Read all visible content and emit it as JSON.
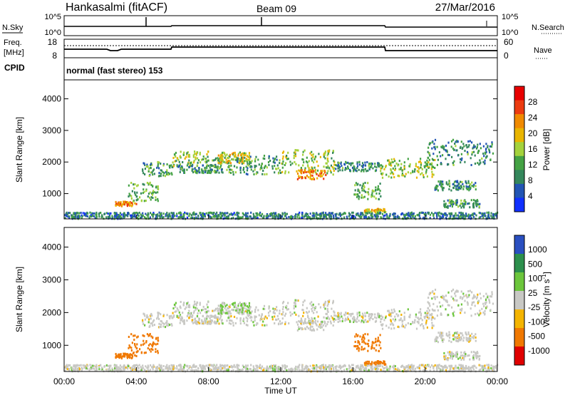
{
  "header": {
    "station": "Hankasalmi (fitACF)",
    "beam": "Beam 09",
    "date": "27/Mar/2016"
  },
  "sky_panel": {
    "left_label": "N.Sky",
    "right_label": "N.Search",
    "left_ticks": [
      "10^5",
      "10^0"
    ],
    "right_ticks": [
      "10^5",
      "10^0"
    ]
  },
  "freq_panel": {
    "left_label_1": "Freq.",
    "left_label_2": "[MHz]",
    "right_label": "Nave",
    "left_ticks": [
      "18",
      "8"
    ],
    "right_ticks": [
      "60",
      "0"
    ]
  },
  "cpid": {
    "label": "CPID",
    "text": "normal (fast stereo) 153"
  },
  "colors": {
    "power": [
      "#1030ff",
      "#2255b4",
      "#34875c",
      "#44a244",
      "#a4d23c",
      "#e9b500",
      "#f08a00",
      "#ec3b10",
      "#e80000"
    ],
    "velocity": [
      "#e00000",
      "#f07800",
      "#f4b400",
      "#c8c8c4",
      "#6cc63c",
      "#2c8f4c",
      "#2a4fc0"
    ]
  },
  "chart_data": {
    "type": "heatmap",
    "xlabel": "Time UT",
    "ylabel": "Slant Range [km]",
    "x_ticks": [
      "00:00",
      "04:00",
      "08:00",
      "12:00",
      "16:00",
      "20:00",
      "00:00"
    ],
    "y_ticks": [
      1000,
      2000,
      3000,
      4000
    ],
    "ylim": [
      200,
      4600
    ],
    "xlim_hours": [
      0,
      24
    ],
    "panels": [
      {
        "name": "power",
        "colorbar_label": "Power [dB]",
        "colorbar_ticks": [
          "28",
          "24",
          "20",
          "16",
          "12",
          "8",
          "4"
        ],
        "colorbar_range": [
          0,
          30
        ]
      },
      {
        "name": "velocity",
        "colorbar_label": "Velocity [m s",
        "colorbar_sup": "-1",
        "colorbar_label_end": "]",
        "colorbar_ticks": [
          "1000",
          "500",
          "100",
          "25",
          "-25",
          "-100",
          "-500",
          "-1000"
        ]
      }
    ],
    "scatter_bands": [
      {
        "t0": 2.7,
        "t1": 4.0,
        "r0": 600,
        "r1": 750,
        "p": 22,
        "v": -200
      },
      {
        "t0": 3.5,
        "t1": 5.2,
        "r0": 750,
        "r1": 1350,
        "p": 12,
        "v": -150
      },
      {
        "t0": 4.3,
        "t1": 6.0,
        "r0": 1550,
        "r1": 2000,
        "p": 10,
        "v": 0
      },
      {
        "t0": 6.0,
        "t1": 8.0,
        "r0": 1850,
        "r1": 2350,
        "p": 14,
        "v": 10
      },
      {
        "t0": 6.2,
        "t1": 8.5,
        "r0": 1650,
        "r1": 1900,
        "p": 9,
        "v": 0
      },
      {
        "t0": 8.0,
        "t1": 12.0,
        "r0": 1600,
        "r1": 2200,
        "p": 11,
        "v": 0
      },
      {
        "t0": 8.5,
        "t1": 10.3,
        "r0": 1950,
        "r1": 2300,
        "p": 17,
        "v": 30
      },
      {
        "t0": 12.0,
        "t1": 15.0,
        "r0": 1600,
        "r1": 2400,
        "p": 14,
        "v": 0
      },
      {
        "t0": 12.8,
        "t1": 14.5,
        "r0": 1450,
        "r1": 1750,
        "p": 22,
        "v": 0
      },
      {
        "t0": 15.0,
        "t1": 17.5,
        "r0": 1700,
        "r1": 2000,
        "p": 9,
        "v": 0
      },
      {
        "t0": 16.0,
        "t1": 17.5,
        "r0": 800,
        "r1": 1350,
        "p": 12,
        "v": -150
      },
      {
        "t0": 16.6,
        "t1": 17.8,
        "r0": 400,
        "r1": 520,
        "p": 18,
        "v": -200
      },
      {
        "t0": 17.5,
        "t1": 20.5,
        "r0": 1500,
        "r1": 2100,
        "p": 15,
        "v": 0
      },
      {
        "t0": 20.0,
        "t1": 23.8,
        "r0": 1900,
        "r1": 2700,
        "p": 9,
        "v": 0
      },
      {
        "t0": 20.5,
        "t1": 22.8,
        "r0": 1100,
        "r1": 1400,
        "p": 9,
        "v": 0
      },
      {
        "t0": 21.0,
        "t1": 23.0,
        "r0": 550,
        "r1": 800,
        "p": 10,
        "v": 0
      },
      {
        "t0": 0.0,
        "t1": 24.0,
        "r0": 200,
        "r1": 400,
        "p": 8,
        "v": 0
      }
    ]
  }
}
